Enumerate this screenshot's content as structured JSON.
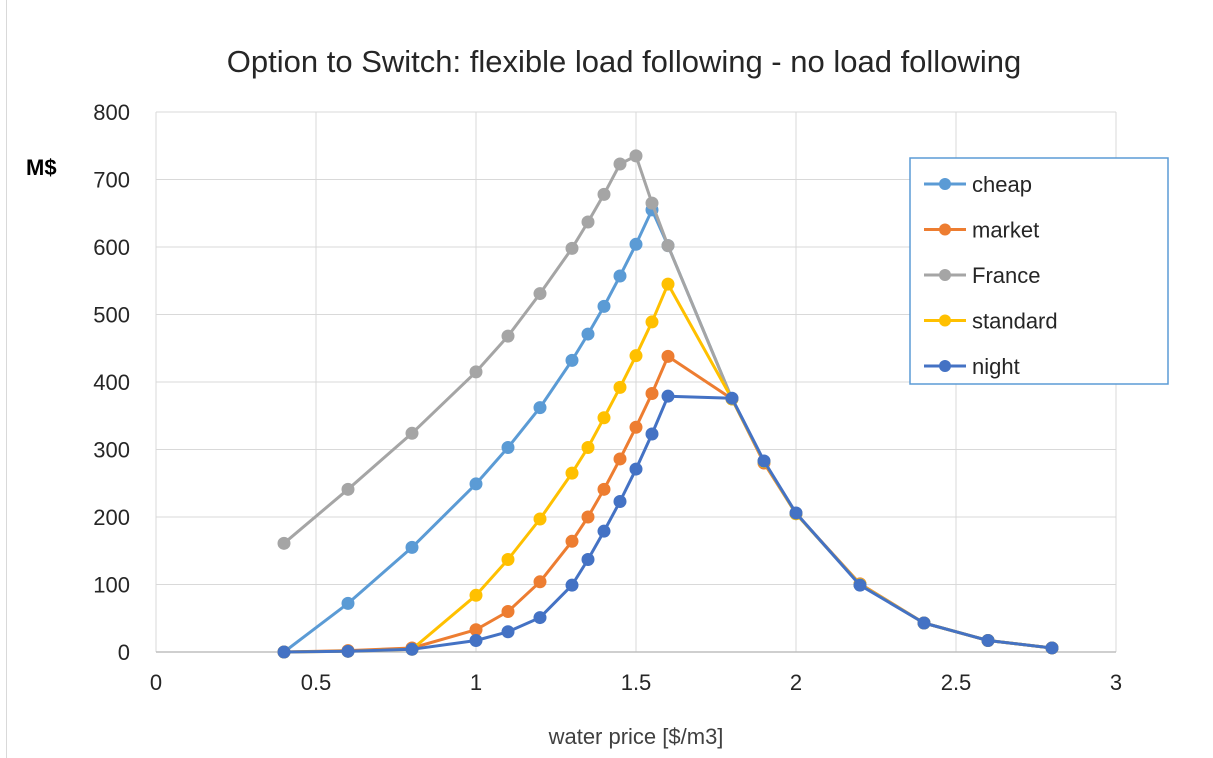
{
  "chart_data": {
    "type": "line",
    "title": "Option to Switch: flexible load following - no load following",
    "xlabel": "water price [$/m3]",
    "ylabel": "M$",
    "xlim": [
      0,
      3
    ],
    "ylim": [
      0,
      800
    ],
    "xticks": [
      0,
      0.5,
      1,
      1.5,
      2,
      2.5,
      3
    ],
    "xtick_labels": [
      "0",
      "0.5",
      "1",
      "1.5",
      "2",
      "2.5",
      "3"
    ],
    "yticks": [
      0,
      100,
      200,
      300,
      400,
      500,
      600,
      700,
      800
    ],
    "ytick_labels": [
      "0",
      "100",
      "200",
      "300",
      "400",
      "500",
      "600",
      "700",
      "800"
    ],
    "grid": true,
    "legend_position": "top-right",
    "series": [
      {
        "name": "cheap",
        "color": "#5b9bd5",
        "points": [
          [
            0.4,
            0
          ],
          [
            0.6,
            72
          ],
          [
            0.8,
            155
          ],
          [
            1.0,
            249
          ],
          [
            1.1,
            303
          ],
          [
            1.2,
            362
          ],
          [
            1.3,
            432
          ],
          [
            1.35,
            471
          ],
          [
            1.4,
            512
          ],
          [
            1.45,
            557
          ],
          [
            1.5,
            604
          ],
          [
            1.55,
            655
          ],
          [
            1.6,
            602
          ],
          [
            1.8,
            375
          ],
          [
            1.9,
            282
          ],
          [
            2.0,
            205
          ],
          [
            2.2,
            100
          ],
          [
            2.4,
            43
          ],
          [
            2.6,
            17
          ],
          [
            2.8,
            6
          ]
        ]
      },
      {
        "name": "market",
        "color": "#ed7d31",
        "points": [
          [
            0.4,
            0
          ],
          [
            0.6,
            2
          ],
          [
            0.8,
            6
          ],
          [
            1.0,
            33
          ],
          [
            1.1,
            60
          ],
          [
            1.2,
            104
          ],
          [
            1.3,
            164
          ],
          [
            1.35,
            200
          ],
          [
            1.4,
            241
          ],
          [
            1.45,
            286
          ],
          [
            1.5,
            333
          ],
          [
            1.55,
            383
          ],
          [
            1.6,
            438
          ],
          [
            1.8,
            375
          ],
          [
            1.9,
            280
          ],
          [
            2.0,
            205
          ],
          [
            2.2,
            101
          ],
          [
            2.4,
            43
          ],
          [
            2.6,
            17
          ],
          [
            2.8,
            6
          ]
        ]
      },
      {
        "name": "France",
        "color": "#a5a5a5",
        "points": [
          [
            0.4,
            161
          ],
          [
            0.6,
            241
          ],
          [
            0.8,
            324
          ],
          [
            1.0,
            415
          ],
          [
            1.1,
            468
          ],
          [
            1.2,
            531
          ],
          [
            1.3,
            598
          ],
          [
            1.35,
            637
          ],
          [
            1.4,
            678
          ],
          [
            1.45,
            723
          ],
          [
            1.5,
            735
          ],
          [
            1.55,
            665
          ],
          [
            1.6,
            602
          ],
          [
            1.8,
            375
          ],
          [
            1.9,
            282
          ],
          [
            2.0,
            205
          ],
          [
            2.2,
            100
          ],
          [
            2.4,
            43
          ],
          [
            2.6,
            17
          ],
          [
            2.8,
            6
          ]
        ]
      },
      {
        "name": "standard",
        "color": "#ffc000",
        "points": [
          [
            0.4,
            0
          ],
          [
            0.6,
            1
          ],
          [
            0.8,
            4
          ],
          [
            1.0,
            84
          ],
          [
            1.1,
            137
          ],
          [
            1.2,
            197
          ],
          [
            1.3,
            265
          ],
          [
            1.35,
            303
          ],
          [
            1.4,
            347
          ],
          [
            1.45,
            392
          ],
          [
            1.5,
            439
          ],
          [
            1.55,
            489
          ],
          [
            1.6,
            545
          ],
          [
            1.8,
            375
          ],
          [
            1.9,
            282
          ],
          [
            2.0,
            205
          ],
          [
            2.2,
            100
          ],
          [
            2.4,
            43
          ],
          [
            2.6,
            17
          ],
          [
            2.8,
            6
          ]
        ]
      },
      {
        "name": "night",
        "color": "#4472c4",
        "points": [
          [
            0.4,
            0
          ],
          [
            0.6,
            1
          ],
          [
            0.8,
            4
          ],
          [
            1.0,
            17
          ],
          [
            1.1,
            30
          ],
          [
            1.2,
            51
          ],
          [
            1.3,
            99
          ],
          [
            1.35,
            137
          ],
          [
            1.4,
            179
          ],
          [
            1.45,
            223
          ],
          [
            1.5,
            271
          ],
          [
            1.55,
            323
          ],
          [
            1.6,
            379
          ],
          [
            1.8,
            376
          ],
          [
            1.9,
            283
          ],
          [
            2.0,
            206
          ],
          [
            2.2,
            99
          ],
          [
            2.4,
            43
          ],
          [
            2.6,
            17
          ],
          [
            2.8,
            6
          ]
        ]
      }
    ]
  }
}
